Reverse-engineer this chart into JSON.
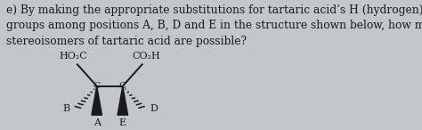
{
  "background_color": "#c2c7cb",
  "question_text": "e) By making the appropriate substitutions for tartaric acid’s H (hydrogen) and OH (hydroxyl)\ngroups among positions A, B, D and E in the structure shown below, how many different\nstereoisomers of tartaric acid are possible?",
  "question_fontsize": 8.8,
  "text_color": "#1a1a1a",
  "label_HO2C": "HO₂C",
  "label_CO2H": "CO₂H",
  "label_A": "A",
  "label_B": "B",
  "label_D": "D",
  "label_E": "E",
  "label_C": "C",
  "c1x": 0.44,
  "c1y": 0.3,
  "c2x": 0.56,
  "c2y": 0.3
}
